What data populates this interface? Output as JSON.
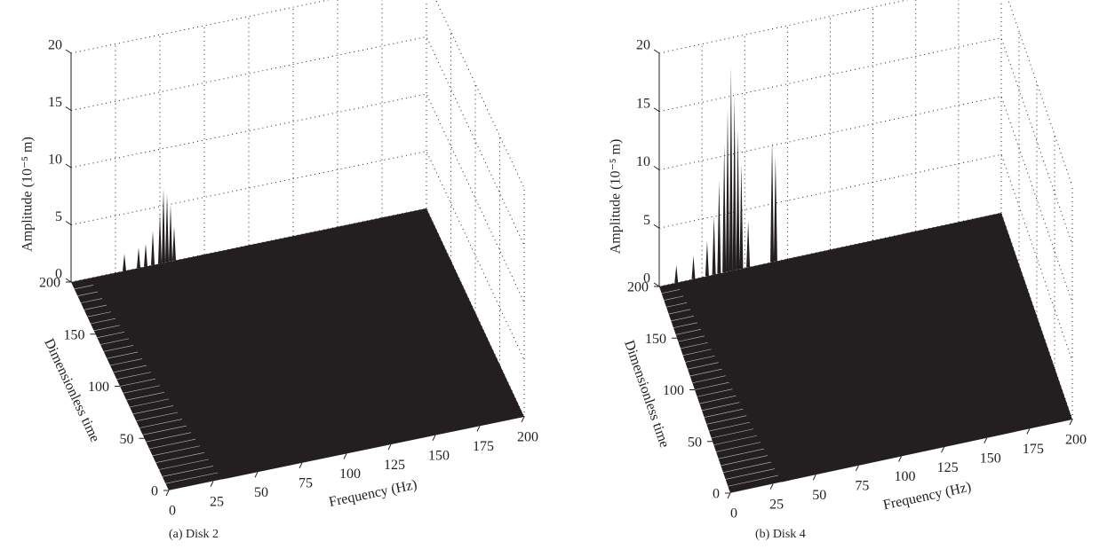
{
  "chart_data": [
    {
      "type": "waterfall",
      "caption": "(a)  Disk 2",
      "xlabel": "Frequency (Hz)",
      "ylabel": "Dimensionless time",
      "zlabel": "Amplitude (10⁻⁵ m)",
      "xlim": [
        0,
        200
      ],
      "xticks": [
        0,
        25,
        50,
        75,
        100,
        125,
        150,
        175,
        200
      ],
      "ylim": [
        0,
        200
      ],
      "yticks": [
        0,
        50,
        100,
        150,
        200
      ],
      "zlim": [
        0,
        20
      ],
      "zticks": [
        0,
        5,
        10,
        15,
        20
      ],
      "color": "#231f20",
      "grid": true,
      "x": [
        30,
        38,
        42,
        46,
        50,
        52,
        54,
        56,
        58
      ],
      "t": [
        200,
        200,
        200,
        200,
        200,
        200,
        200,
        200,
        200
      ],
      "values": [
        1.5,
        1.8,
        2,
        3,
        4.5,
        6.5,
        6,
        5,
        3
      ]
    },
    {
      "type": "waterfall",
      "caption": "(b)  Disk 4",
      "xlabel": "Frequency (Hz)",
      "ylabel": "Dimensionless time",
      "zlabel": "Amplitude (10⁻⁵ m)",
      "xlim": [
        0,
        200
      ],
      "xticks": [
        0,
        25,
        50,
        75,
        100,
        125,
        150,
        175,
        200
      ],
      "ylim": [
        0,
        200
      ],
      "yticks": [
        0,
        50,
        100,
        150,
        200
      ],
      "zlim": [
        0,
        20
      ],
      "zticks": [
        0,
        5,
        10,
        15,
        20
      ],
      "color": "#231f20",
      "grid": true,
      "x": [
        10,
        20,
        28,
        32,
        35,
        38,
        40,
        42,
        44,
        46,
        48,
        52,
        66,
        68
      ],
      "t": [
        200,
        200,
        200,
        200,
        200,
        200,
        200,
        200,
        200,
        200,
        200,
        200,
        200,
        200
      ],
      "values": [
        1.5,
        2,
        3,
        5,
        8,
        11,
        14,
        17.5,
        15,
        12,
        9,
        4,
        10.5,
        9
      ]
    }
  ]
}
